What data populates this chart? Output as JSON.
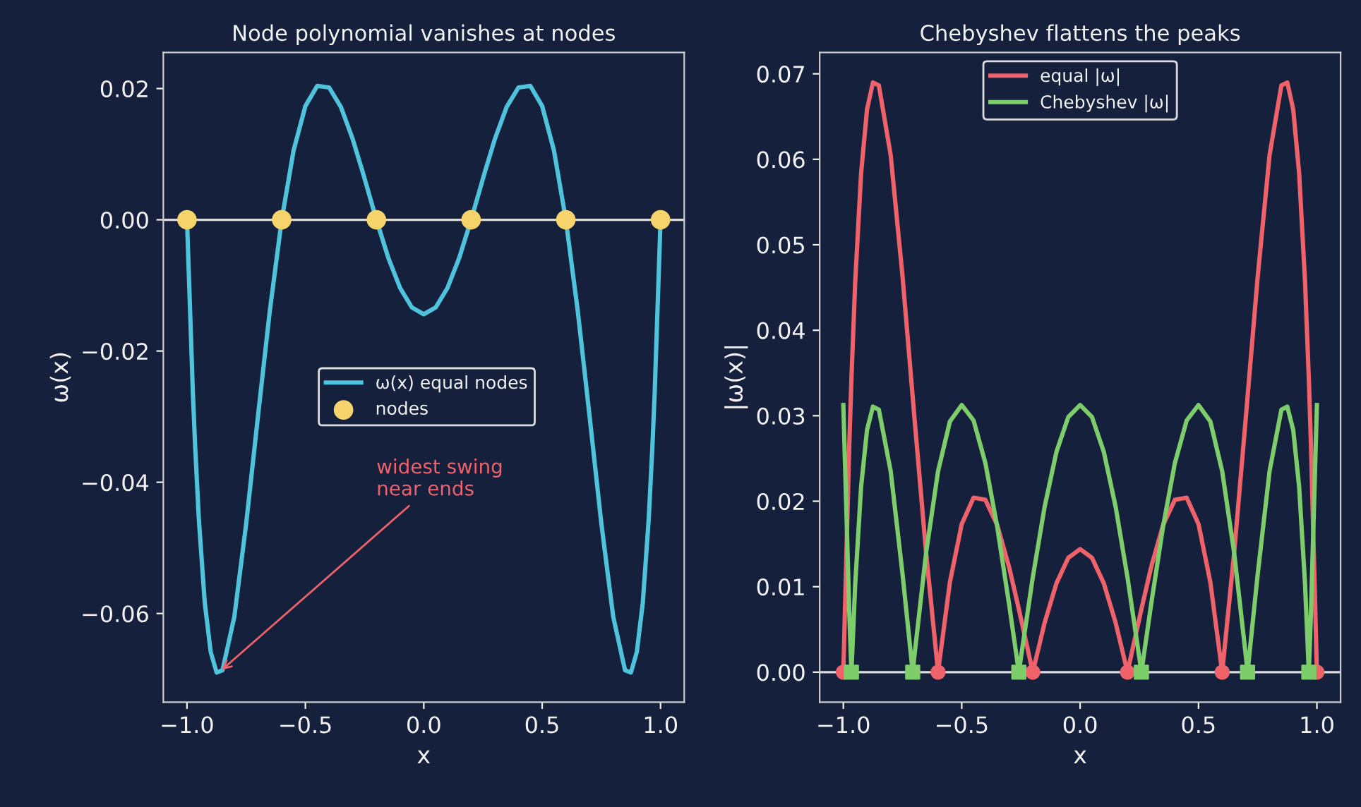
{
  "chart_data": [
    {
      "type": "line",
      "title": "Node polynomial vanishes at nodes",
      "xlabel": "x",
      "ylabel": "ω(x)",
      "xlim": [
        -1.1,
        1.1
      ],
      "xticks": [
        {
          "value": -1,
          "label": "−1.0"
        },
        {
          "value": -0.5,
          "label": "−0.5"
        },
        {
          "value": 0,
          "label": "0.0"
        },
        {
          "value": 0.5,
          "label": "0.5"
        },
        {
          "value": 1,
          "label": "1.0"
        }
      ],
      "ylim": [
        -0.0735,
        0.0255
      ],
      "yticks": [
        {
          "value": -0.06,
          "label": "−0.06"
        },
        {
          "value": -0.04,
          "label": "−0.04"
        },
        {
          "value": -0.02,
          "label": "−0.02"
        },
        {
          "value": 0,
          "label": "0.00"
        },
        {
          "value": 0.02,
          "label": "0.02"
        }
      ],
      "legend": "center right",
      "grid": false,
      "ref_lines": [
        {
          "axis": "y",
          "value": 0,
          "color": "#dddddd"
        }
      ],
      "annotations": [
        {
          "text": "widest swing\nnear ends",
          "x": -0.866,
          "y": -0.069
        }
      ],
      "series": [
        {
          "name": "ω(x) equal nodes",
          "type": "line",
          "color": "#4fc3dc",
          "marker": "none",
          "x": [
            -1,
            -0.975,
            -0.9659,
            -0.95,
            -0.925,
            -0.9,
            -0.875,
            -0.85,
            -0.8,
            -0.75,
            -0.7071,
            -0.7,
            -0.65,
            -0.6,
            -0.55,
            -0.5,
            -0.45,
            -0.4,
            -0.35,
            -0.3,
            -0.2588,
            -0.25,
            -0.2,
            -0.15,
            -0.1,
            -0.05,
            0,
            0.05,
            0.1,
            0.15,
            0.2,
            0.25,
            0.2588,
            0.3,
            0.35,
            0.4,
            0.45,
            0.5,
            0.55,
            0.6,
            0.65,
            0.7,
            0.7071,
            0.75,
            0.8,
            0.85,
            0.875,
            0.9,
            0.925,
            0.95,
            0.9659,
            0.975,
            1
          ],
          "values": [
            0,
            -0.026556,
            -0.0343,
            -0.045621,
            -0.058363,
            -0.065835,
            -0.068984,
            -0.068655,
            -0.06048,
            -0.04629,
            -0.0322,
            -0.029835,
            -0.013806,
            0,
            0.010528,
            0.017325,
            0.020411,
            0.02016,
            0.017194,
            0.012285,
            0.007376,
            0.006275,
            0,
            -0.005773,
            -0.010395,
            -0.013373,
            -0.0144,
            -0.013373,
            -0.010395,
            -0.005773,
            0,
            0.006275,
            0.007376,
            0.012285,
            0.017194,
            0.02016,
            0.020411,
            0.017325,
            0.010528,
            0,
            -0.013806,
            -0.029835,
            -0.0322,
            -0.04629,
            -0.06048,
            -0.068655,
            -0.068984,
            -0.065835,
            -0.058363,
            -0.045621,
            -0.0343,
            -0.026556,
            0
          ]
        },
        {
          "name": "nodes",
          "type": "scatter",
          "color": "#f7d46b",
          "marker": "circle",
          "x": [
            -1,
            -0.6,
            -0.2,
            0.2,
            0.6,
            1
          ],
          "values": [
            0,
            0,
            0,
            0,
            0,
            0
          ]
        }
      ]
    },
    {
      "type": "line",
      "title": "Chebyshev flattens the peaks",
      "xlabel": "x",
      "ylabel": "|ω(x)|",
      "xlim": [
        -1.1,
        1.1
      ],
      "xticks": [
        {
          "value": -1,
          "label": "−1.0"
        },
        {
          "value": -0.5,
          "label": "−0.5"
        },
        {
          "value": 0,
          "label": "0.0"
        },
        {
          "value": 0.5,
          "label": "0.5"
        },
        {
          "value": 1,
          "label": "1.0"
        }
      ],
      "ylim": [
        -0.0035,
        0.0725
      ],
      "yticks": [
        {
          "value": 0,
          "label": "0.00"
        },
        {
          "value": 0.01,
          "label": "0.01"
        },
        {
          "value": 0.02,
          "label": "0.02"
        },
        {
          "value": 0.03,
          "label": "0.03"
        },
        {
          "value": 0.04,
          "label": "0.04"
        },
        {
          "value": 0.05,
          "label": "0.05"
        },
        {
          "value": 0.06,
          "label": "0.06"
        },
        {
          "value": 0.07,
          "label": "0.07"
        }
      ],
      "legend": "upper center",
      "grid": false,
      "ref_lines": [
        {
          "axis": "y",
          "value": 0,
          "color": "#dddddd"
        }
      ],
      "series": [
        {
          "name": "equal |ω|",
          "type": "line",
          "color": "#f0626a",
          "marker": "none",
          "x": [
            -1,
            -0.975,
            -0.9659,
            -0.95,
            -0.925,
            -0.9,
            -0.875,
            -0.85,
            -0.8,
            -0.75,
            -0.7071,
            -0.7,
            -0.65,
            -0.6,
            -0.55,
            -0.5,
            -0.45,
            -0.4,
            -0.35,
            -0.3,
            -0.2588,
            -0.25,
            -0.2,
            -0.15,
            -0.1,
            -0.05,
            0,
            0.05,
            0.1,
            0.15,
            0.2,
            0.25,
            0.2588,
            0.3,
            0.35,
            0.4,
            0.45,
            0.5,
            0.55,
            0.6,
            0.65,
            0.7,
            0.7071,
            0.75,
            0.8,
            0.85,
            0.875,
            0.9,
            0.925,
            0.95,
            0.9659,
            0.975,
            1
          ],
          "values": [
            0,
            0.026556,
            0.0343,
            0.045621,
            0.058363,
            0.065835,
            0.068984,
            0.068655,
            0.06048,
            0.04629,
            0.0322,
            0.029835,
            0.013806,
            0,
            0.010528,
            0.017325,
            0.020411,
            0.02016,
            0.017194,
            0.012285,
            0.007376,
            0.006275,
            0,
            0.005773,
            0.010395,
            0.013373,
            0.0144,
            0.013373,
            0.010395,
            0.005773,
            0,
            0.006275,
            0.007376,
            0.012285,
            0.017194,
            0.02016,
            0.020411,
            0.017325,
            0.010528,
            0,
            0.013806,
            0.029835,
            0.0322,
            0.04629,
            0.06048,
            0.068655,
            0.068984,
            0.065835,
            0.058363,
            0.045621,
            0.0343,
            0.026556,
            0
          ]
        },
        {
          "name": "Chebyshev |ω|",
          "type": "line",
          "color": "#7dce6a",
          "marker": "none",
          "x": [
            -1,
            -0.975,
            -0.9659,
            -0.95,
            -0.925,
            -0.9,
            -0.875,
            -0.85,
            -0.8,
            -0.75,
            -0.7071,
            -0.7,
            -0.65,
            -0.6,
            -0.55,
            -0.5,
            -0.45,
            -0.4,
            -0.35,
            -0.3,
            -0.2588,
            -0.25,
            -0.2,
            -0.15,
            -0.1,
            -0.05,
            0,
            0.05,
            0.1,
            0.15,
            0.2,
            0.25,
            0.2588,
            0.3,
            0.35,
            0.4,
            0.45,
            0.5,
            0.55,
            0.6,
            0.65,
            0.7,
            0.7071,
            0.75,
            0.8,
            0.85,
            0.875,
            0.9,
            0.925,
            0.95,
            0.9659,
            0.975,
            1
          ],
          "values": [
            0.03125,
            0.007016,
            0,
            0.010261,
            0.021684,
            0.028334,
            0.031063,
            0.030704,
            0.023506,
            0.011474,
            0,
            0.001874,
            0.014066,
            0.023506,
            0.029328,
            0.03125,
            0.029451,
            0.024446,
            0.016985,
            0.007954,
            0,
            0.001709,
            0.011086,
            0.019342,
            0.025774,
            0.029853,
            0.03125,
            0.029853,
            0.025774,
            0.019342,
            0.011086,
            0.001709,
            0,
            0.007954,
            0.016985,
            0.024446,
            0.029451,
            0.03125,
            0.029328,
            0.023506,
            0.014066,
            0.001874,
            0,
            0.011474,
            0.023506,
            0.030704,
            0.031063,
            0.028334,
            0.021684,
            0.010261,
            0,
            0.007016,
            0.03125
          ]
        },
        {
          "type": "scatter",
          "color": "#f0626a",
          "marker": "circle",
          "x": [
            -1,
            -0.6,
            -0.2,
            0.2,
            0.6,
            1
          ],
          "values": [
            0,
            0,
            0,
            0,
            0,
            0
          ]
        },
        {
          "type": "scatter",
          "color": "#7dce6a",
          "marker": "square",
          "x": [
            -0.9659,
            -0.7071,
            -0.2588,
            0.2588,
            0.7071,
            0.9659
          ],
          "values": [
            0,
            0,
            0,
            0,
            0,
            0
          ]
        }
      ]
    }
  ]
}
